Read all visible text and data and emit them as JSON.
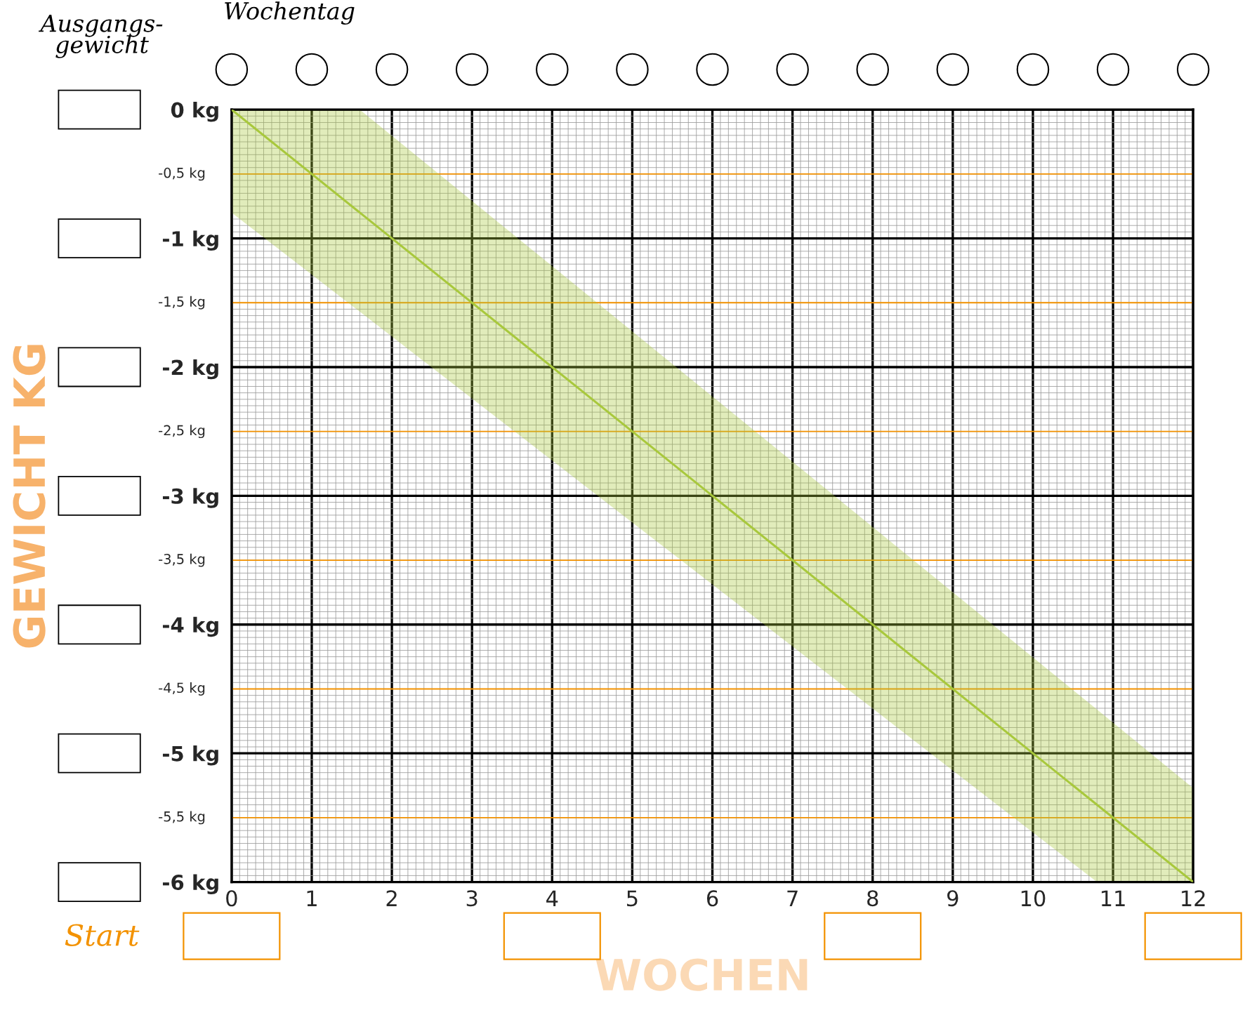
{
  "chart_data": {
    "type": "line",
    "xlabel": "WOCHEN",
    "ylabel": "GEWICHT KG",
    "xlim": [
      0,
      12
    ],
    "ylim": [
      -6,
      0
    ],
    "xticks": [
      0,
      1,
      2,
      3,
      4,
      5,
      6,
      7,
      8,
      9,
      10,
      11,
      12
    ],
    "yticks": [
      {
        "value": 0,
        "label": "0 kg"
      },
      {
        "value": -1,
        "label": "-1 kg"
      },
      {
        "value": -2,
        "label": "-2 kg"
      },
      {
        "value": -3,
        "label": "-3 kg"
      },
      {
        "value": -4,
        "label": "-4 kg"
      },
      {
        "value": -5,
        "label": "-5 kg"
      },
      {
        "value": -6,
        "label": "-6 kg"
      }
    ],
    "grid": true,
    "marker": "none",
    "line_style": "solid",
    "series": [
      {
        "color": "#a8c83c",
        "x": [
          0,
          1.6,
          10.8,
          12
        ],
        "values": [
          0,
          -0.8,
          -5.4,
          -6
        ],
        "upper": [
          0,
          0,
          -4.66,
          -5.27
        ],
        "lower": [
          -0.8,
          -1.57,
          -6,
          -6
        ]
      }
    ],
    "ref_lines": [
      {
        "axis": "y",
        "value": -0.5,
        "label": "-0,5 kg",
        "color": "#f39200"
      },
      {
        "axis": "y",
        "value": -1.5,
        "label": "-1,5 kg",
        "color": "#f39200"
      },
      {
        "axis": "y",
        "value": -2.5,
        "label": "-2,5 kg",
        "color": "#f39200"
      },
      {
        "axis": "y",
        "value": -3.5,
        "label": "-3,5 kg",
        "color": "#f39200"
      },
      {
        "axis": "y",
        "value": -4.5,
        "label": "-4,5 kg",
        "color": "#f39200"
      },
      {
        "axis": "y",
        "value": -5.5,
        "label": "-5,5 kg",
        "color": "#f39200"
      }
    ],
    "annotations": [
      "Ausgangs-\ngewicht",
      "Wochentag",
      "Start"
    ]
  }
}
